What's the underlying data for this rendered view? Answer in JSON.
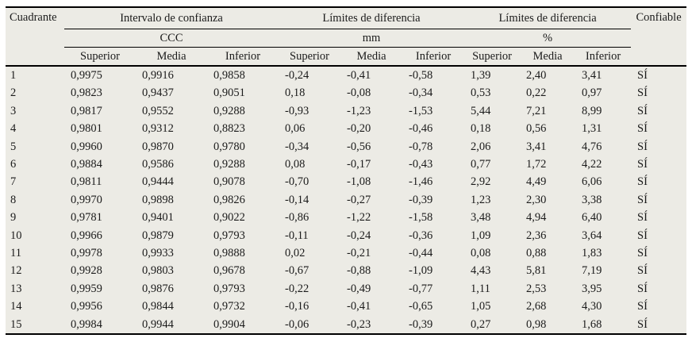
{
  "page": {
    "background": "#ffffff"
  },
  "table": {
    "background": "#ecebe5",
    "rule_color": "#000000",
    "text_color": "#1b1b1b",
    "header": {
      "quadrant": "Cuadrante",
      "reliable": "Confiable",
      "groups": [
        {
          "label": "Intervalo de confianza",
          "unit": "CCC"
        },
        {
          "label": "Límites de diferencia",
          "unit": "mm"
        },
        {
          "label": "Límites de diferencia",
          "unit": "%"
        }
      ],
      "subcols": [
        "Superior",
        "Media",
        "Inferior"
      ]
    },
    "rows": [
      [
        "1",
        "0,9975",
        "0,9916",
        "0,9858",
        "-0,24",
        "-0,41",
        "-0,58",
        "1,39",
        "2,40",
        "3,41",
        "SÍ"
      ],
      [
        "2",
        "0,9823",
        "0,9437",
        "0,9051",
        "0,18",
        "-0,08",
        "-0,34",
        "0,53",
        "0,22",
        "0,97",
        "SÍ"
      ],
      [
        "3",
        "0,9817",
        "0,9552",
        "0,9288",
        "-0,93",
        "-1,23",
        "-1,53",
        "5,44",
        "7,21",
        "8,99",
        "SÍ"
      ],
      [
        "4",
        "0,9801",
        "0,9312",
        "0,8823",
        "0,06",
        "-0,20",
        "-0,46",
        "0,18",
        "0,56",
        "1,31",
        "SÍ"
      ],
      [
        "5",
        "0,9960",
        "0,9870",
        "0,9780",
        "-0,34",
        "-0,56",
        "-0,78",
        "2,06",
        "3,41",
        "4,76",
        "SÍ"
      ],
      [
        "6",
        "0,9884",
        "0,9586",
        "0,9288",
        "0,08",
        "-0,17",
        "-0,43",
        "0,77",
        "1,72",
        "4,22",
        "SÍ"
      ],
      [
        "7",
        "0,9811",
        "0,9444",
        "0,9078",
        "-0,70",
        "-1,08",
        "-1,46",
        "2,92",
        "4,49",
        "6,06",
        "SÍ"
      ],
      [
        "8",
        "0,9970",
        "0,9898",
        "0,9826",
        "-0,14",
        "-0,27",
        "-0,39",
        "1,23",
        "2,30",
        "3,38",
        "SÍ"
      ],
      [
        "9",
        "0,9781",
        "0,9401",
        "0,9022",
        "-0,86",
        "-1,22",
        "-1,58",
        "3,48",
        "4,94",
        "6,40",
        "SÍ"
      ],
      [
        "10",
        "0,9966",
        "0,9879",
        "0,9793",
        "-0,11",
        "-0,24",
        "-0,36",
        "1,09",
        "2,36",
        "3,64",
        "SÍ"
      ],
      [
        "11",
        "0,9978",
        "0,9933",
        "0,9888",
        "0,02",
        "-0,21",
        "-0,44",
        "0,08",
        "0,88",
        "1,83",
        "SÍ"
      ],
      [
        "12",
        "0,9928",
        "0,9803",
        "0,9678",
        "-0,67",
        "-0,88",
        "-1,09",
        "4,43",
        "5,81",
        "7,19",
        "SÍ"
      ],
      [
        "13",
        "0,9959",
        "0,9876",
        "0,9793",
        "-0,22",
        "-0,49",
        "-0,77",
        "1,11",
        "2,53",
        "3,95",
        "SÍ"
      ],
      [
        "14",
        "0,9956",
        "0,9844",
        "0,9732",
        "-0,16",
        "-0,41",
        "-0,65",
        "1,05",
        "2,68",
        "4,30",
        "SÍ"
      ],
      [
        "15",
        "0,9984",
        "0,9944",
        "0,9904",
        "-0,06",
        "-0,23",
        "-0,39",
        "0,27",
        "0,98",
        "1,68",
        "SÍ"
      ]
    ]
  }
}
